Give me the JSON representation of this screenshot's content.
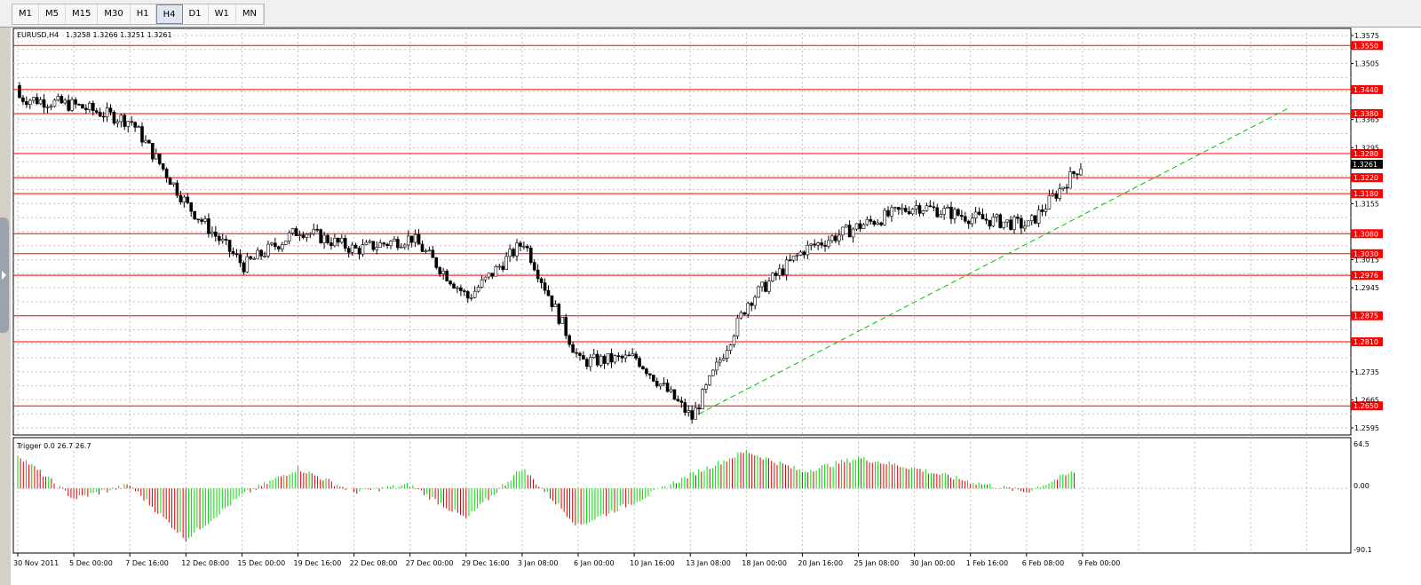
{
  "toolbar": {
    "timeframes": [
      "M1",
      "M5",
      "M15",
      "M30",
      "H1",
      "H4",
      "D1",
      "W1",
      "MN"
    ],
    "active": "H4"
  },
  "chart": {
    "symbol_label": "EURUSD,H4",
    "ohlc_label": "1.3258 1.3266 1.3251 1.3261",
    "current_price": "1.3261",
    "price_axis_ticks": [
      "1.3575",
      "1.3505",
      "1.3365",
      "1.3295",
      "1.3155",
      "1.3015",
      "1.2945",
      "1.2735",
      "1.2665",
      "1.2595"
    ],
    "horizontal_levels": [
      "1.3550",
      "1.3440",
      "1.3380",
      "1.3280",
      "1.3220",
      "1.3180",
      "1.3080",
      "1.3030",
      "1.2976",
      "1.2875",
      "1.2810",
      "1.2650"
    ],
    "time_axis_labels": [
      "30 Nov 2011",
      "5 Dec 00:00",
      "7 Dec 16:00",
      "12 Dec 08:00",
      "15 Dec 00:00",
      "19 Dec 16:00",
      "22 Dec 08:00",
      "27 Dec 00:00",
      "29 Dec 16:00",
      "3 Jan 08:00",
      "6 Jan 00:00",
      "10 Jan 16:00",
      "13 Jan 08:00",
      "18 Jan 00:00",
      "20 Jan 16:00",
      "25 Jan 08:00",
      "30 Jan 00:00",
      "1 Feb 16:00",
      "6 Feb 08:00",
      "9 Feb 00:00"
    ],
    "colors": {
      "level_line": "#ff0000",
      "trend_line": "#00c000",
      "bull_body": "#ffffff",
      "bear_body": "#000000",
      "grid": "#c0c0c0"
    }
  },
  "indicator": {
    "label": "Trigger 0.0 26.7 26.7",
    "axis_ticks": [
      "64.5",
      "0.00",
      "-90.1"
    ],
    "colors": {
      "positive": "#00e000",
      "negative": "#e00000"
    }
  },
  "chart_data": [
    {
      "type": "candlestick",
      "title": "EURUSD,H4",
      "ylim": [
        1.2595,
        1.3575
      ],
      "x": [
        "30 Nov 2011",
        "5 Dec 00:00",
        "7 Dec 16:00",
        "12 Dec 08:00",
        "15 Dec 00:00",
        "19 Dec 16:00",
        "22 Dec 08:00",
        "27 Dec 00:00",
        "29 Dec 16:00",
        "3 Jan 08:00",
        "6 Jan 00:00",
        "10 Jan 16:00",
        "13 Jan 08:00",
        "18 Jan 00:00",
        "20 Jan 16:00",
        "25 Jan 08:00",
        "30 Jan 00:00",
        "1 Feb 16:00",
        "6 Feb 08:00",
        "9 Feb 00:00"
      ],
      "series": [
        {
          "values": [
            1.342,
            1.34,
            1.336,
            1.315,
            1.3,
            1.309,
            1.304,
            1.307,
            1.292,
            1.306,
            1.276,
            1.277,
            1.262,
            1.291,
            1.304,
            1.31,
            1.315,
            1.312,
            1.31,
            1.3261
          ]
        }
      ],
      "levels": [
        1.355,
        1.344,
        1.338,
        1.328,
        1.322,
        1.318,
        1.308,
        1.303,
        1.2976,
        1.2875,
        1.281,
        1.265
      ],
      "grid": true
    },
    {
      "type": "bar",
      "title": "Trigger 0.0 26.7 26.7",
      "ylim": [
        -90.1,
        64.5
      ],
      "x": [
        "30 Nov 2011",
        "5 Dec 00:00",
        "7 Dec 16:00",
        "12 Dec 08:00",
        "15 Dec 00:00",
        "19 Dec 16:00",
        "22 Dec 08:00",
        "27 Dec 00:00",
        "29 Dec 16:00",
        "3 Jan 08:00",
        "6 Jan 00:00",
        "10 Jan 16:00",
        "13 Jan 08:00",
        "18 Jan 00:00",
        "20 Jan 16:00",
        "25 Jan 08:00",
        "30 Jan 00:00",
        "1 Feb 16:00",
        "6 Feb 08:00",
        "9 Feb 00:00"
      ],
      "series": [
        {
          "values": [
            50,
            -15,
            5,
            -75,
            -10,
            30,
            -5,
            5,
            -45,
            30,
            -55,
            -20,
            20,
            55,
            25,
            45,
            30,
            10,
            -5,
            30
          ]
        }
      ],
      "grid": true
    }
  ]
}
